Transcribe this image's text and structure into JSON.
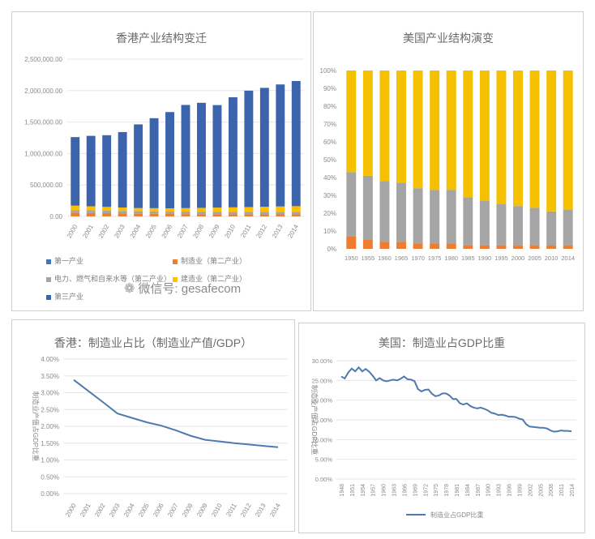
{
  "panels": {
    "hk_structure": {
      "title": "香港产业结构变迁"
    },
    "us_structure": {
      "title": "美国产业结构演变"
    },
    "hk_mfg": {
      "title": "香港：制造业占比（制造业产值/GDP）"
    },
    "us_mfg": {
      "title": "美国：制造业占GDP比重"
    }
  },
  "watermark": {
    "icon": "wechat-icon",
    "text": "微信号: gesafecom"
  },
  "colors": {
    "primary": "#4472c4",
    "manufacturing": "#ed7d31",
    "utilities": "#a5a5a5",
    "construction": "#ffc000",
    "tertiary": "#3b64ad",
    "line": "#4e7ab0",
    "us_tertiary": "#f5c000",
    "grid": "#e6e6e6"
  },
  "chart_data": [
    {
      "type": "bar",
      "stacked": true,
      "title": "香港产业结构变迁",
      "categories": [
        "2000",
        "2001",
        "2002",
        "2003",
        "2004",
        "2005",
        "2006",
        "2007",
        "2008",
        "2009",
        "2010",
        "2011",
        "2012",
        "2013",
        "2014"
      ],
      "y_ticks": [
        "2,500,000.00",
        "2,000,000.00",
        "1,500,000.00",
        "1,000,000.00",
        "500,000.00",
        "0.00"
      ],
      "ylim": [
        0,
        2500000
      ],
      "grid": true,
      "legend_position": "bottom-left",
      "series": [
        {
          "name": "第一产业",
          "color": "#4472c4",
          "values": [
            1000,
            1000,
            1000,
            1000,
            1000,
            1000,
            1000,
            1000,
            1000,
            1000,
            1000,
            1000,
            1000,
            1000,
            1000
          ]
        },
        {
          "name": "制造业（第二产业）",
          "color": "#ed7d31",
          "values": [
            60000,
            55000,
            50000,
            45000,
            42000,
            40000,
            38000,
            36000,
            35000,
            34000,
            33000,
            33000,
            33000,
            32000,
            32000
          ]
        },
        {
          "name": "电力、燃气和自来水等（第二产业）",
          "color": "#a5a5a5",
          "values": [
            40000,
            40000,
            40000,
            40000,
            40000,
            40000,
            40000,
            40000,
            40000,
            40000,
            40000,
            40000,
            40000,
            40000,
            40000
          ]
        },
        {
          "name": "建造业（第二产业）",
          "color": "#ffc000",
          "values": [
            70000,
            65000,
            60000,
            55000,
            50000,
            50000,
            50000,
            55000,
            60000,
            65000,
            70000,
            75000,
            80000,
            85000,
            90000
          ]
        },
        {
          "name": "第三产业",
          "color": "#3b64ad",
          "values": [
            1090000,
            1120000,
            1140000,
            1200000,
            1330000,
            1430000,
            1530000,
            1640000,
            1670000,
            1630000,
            1750000,
            1850000,
            1890000,
            1940000,
            1990000
          ]
        }
      ]
    },
    {
      "type": "bar",
      "stacked": true,
      "percent": true,
      "title": "美国产业结构演变",
      "categories": [
        "1950",
        "1955",
        "1960",
        "1965",
        "1970",
        "1975",
        "1980",
        "1985",
        "1990",
        "1995",
        "2000",
        "2005",
        "2010",
        "2014"
      ],
      "y_ticks": [
        "100%",
        "90%",
        "80%",
        "70%",
        "60%",
        "50%",
        "40%",
        "30%",
        "20%",
        "10%",
        "0%"
      ],
      "ylim": [
        0,
        100
      ],
      "grid": false,
      "series": [
        {
          "color": "#ed7d31",
          "values": [
            7,
            5,
            4,
            4,
            3,
            3,
            3,
            2,
            2,
            2,
            2,
            2,
            2,
            2
          ]
        },
        {
          "color": "#a5a5a5",
          "values": [
            36,
            36,
            34,
            33,
            31,
            30,
            30,
            27,
            25,
            23,
            22,
            21,
            19,
            20
          ]
        },
        {
          "color": "#f5c000",
          "values": [
            57,
            59,
            62,
            63,
            66,
            67,
            67,
            71,
            73,
            75,
            76,
            77,
            79,
            78
          ]
        }
      ]
    },
    {
      "type": "line",
      "title": "香港：制造业占比（制造业产值/GDP）",
      "ylabel": "制造业产值占GDP比重",
      "categories": [
        "2000",
        "2001",
        "2002",
        "2003",
        "2004",
        "2005",
        "2006",
        "2007",
        "2008",
        "2009",
        "2010",
        "2011",
        "2012",
        "2013",
        "2014"
      ],
      "values": [
        3.38,
        3.05,
        2.72,
        2.38,
        2.25,
        2.12,
        2.02,
        1.88,
        1.72,
        1.6,
        1.55,
        1.5,
        1.46,
        1.42,
        1.38
      ],
      "y_ticks": [
        "4.00%",
        "3.50%",
        "3.00%",
        "2.50%",
        "2.00%",
        "1.50%",
        "1.00%",
        "0.50%",
        "0.00%"
      ],
      "ylim": [
        0,
        4
      ],
      "grid": true
    },
    {
      "type": "line",
      "title": "美国：制造业占GDP比重",
      "ylabel": "制造业产值占GDP比重",
      "x": [
        1948,
        1949,
        1950,
        1951,
        1952,
        1953,
        1954,
        1955,
        1956,
        1957,
        1958,
        1959,
        1960,
        1961,
        1962,
        1963,
        1964,
        1965,
        1966,
        1967,
        1968,
        1969,
        1970,
        1971,
        1972,
        1973,
        1974,
        1975,
        1976,
        1977,
        1978,
        1979,
        1980,
        1981,
        1982,
        1983,
        1984,
        1985,
        1986,
        1987,
        1988,
        1989,
        1990,
        1991,
        1992,
        1993,
        1994,
        1995,
        1996,
        1997,
        1998,
        1999,
        2000,
        2001,
        2002,
        2003,
        2004,
        2005,
        2006,
        2007,
        2008,
        2009,
        2010,
        2011,
        2012,
        2013,
        2014
      ],
      "values": [
        26.0,
        25.5,
        27.0,
        28.0,
        27.3,
        28.3,
        27.3,
        27.9,
        27.2,
        26.2,
        25.0,
        25.6,
        25.0,
        24.8,
        25.0,
        25.2,
        25.0,
        25.4,
        26.0,
        25.3,
        25.2,
        24.8,
        22.8,
        22.2,
        22.6,
        22.7,
        21.6,
        21.0,
        21.2,
        21.7,
        21.7,
        21.2,
        20.3,
        20.3,
        19.2,
        18.9,
        19.2,
        18.5,
        18.1,
        17.9,
        18.1,
        17.8,
        17.4,
        16.8,
        16.6,
        16.2,
        16.3,
        16.1,
        15.8,
        15.8,
        15.7,
        15.3,
        15.1,
        13.9,
        13.3,
        13.2,
        13.1,
        13.0,
        13.0,
        12.8,
        12.3,
        12.0,
        12.1,
        12.3,
        12.2,
        12.2,
        12.1
      ],
      "x_ticks": [
        "1948",
        "1951",
        "1954",
        "1957",
        "1960",
        "1963",
        "1966",
        "1969",
        "1972",
        "1975",
        "1978",
        "1981",
        "1984",
        "1987",
        "1990",
        "1993",
        "1996",
        "1999",
        "2002",
        "2005",
        "2008",
        "2011",
        "2014"
      ],
      "y_ticks": [
        "30.00%",
        "25.00%",
        "20.00%",
        "15.00%",
        "10.00%",
        "5.00%",
        "0.00%"
      ],
      "ylim": [
        0,
        30
      ],
      "grid": true,
      "legend": "制造业占GDP比重",
      "legend_position": "bottom"
    }
  ]
}
